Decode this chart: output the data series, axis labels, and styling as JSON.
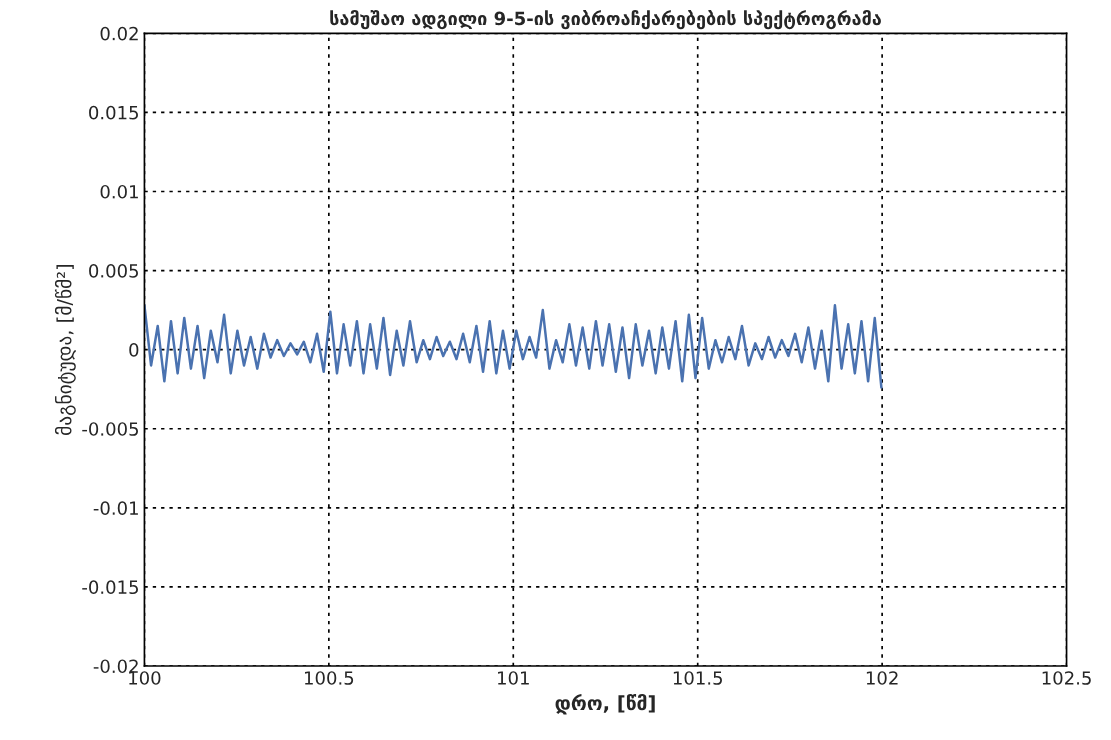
{
  "chart_data": {
    "type": "line",
    "title": "სამუშაო ადგილი 9-5-ის ვიბროაჩქარებების სპექტროგრამა",
    "xlabel": "დრო, [წმ]",
    "ylabel": "მაგნიტუდა, [მ/წმ²]",
    "series": [
      {
        "color": "#4a72b0",
        "x": [
          100,
          100.018,
          100.036,
          100.054,
          100.072,
          100.09,
          100.108,
          100.126,
          100.144,
          100.162,
          100.18,
          100.198,
          100.216,
          100.234,
          100.252,
          100.27,
          100.288,
          100.306,
          100.324,
          100.342,
          100.36,
          100.378,
          100.396,
          100.414,
          100.432,
          100.45,
          100.468,
          100.486,
          100.504,
          100.522,
          100.54,
          100.558,
          100.576,
          100.594,
          100.612,
          100.63,
          100.648,
          100.666,
          100.684,
          100.702,
          100.72,
          100.738,
          100.756,
          100.774,
          100.792,
          100.81,
          100.828,
          100.846,
          100.864,
          100.882,
          100.9,
          100.918,
          100.936,
          100.954,
          100.972,
          100.99,
          101.008,
          101.026,
          101.044,
          101.062,
          101.08,
          101.098,
          101.116,
          101.134,
          101.152,
          101.17,
          101.188,
          101.206,
          101.224,
          101.242,
          101.26,
          101.278,
          101.296,
          101.314,
          101.332,
          101.35,
          101.368,
          101.386,
          101.404,
          101.422,
          101.44,
          101.458,
          101.476,
          101.494,
          101.512,
          101.53,
          101.548,
          101.566,
          101.584,
          101.602,
          101.62,
          101.638,
          101.656,
          101.674,
          101.692,
          101.71,
          101.728,
          101.746,
          101.764,
          101.782,
          101.8,
          101.818,
          101.836,
          101.854,
          101.872,
          101.89,
          101.908,
          101.926,
          101.944,
          101.962,
          101.98,
          101.998
        ],
        "values": [
          0.0028,
          -0.001,
          0.0015,
          -0.002,
          0.0018,
          -0.0015,
          0.002,
          -0.0012,
          0.0015,
          -0.0018,
          0.0012,
          -0.0008,
          0.0022,
          -0.0015,
          0.0012,
          -0.001,
          0.0008,
          -0.0012,
          0.001,
          -0.0005,
          0.0006,
          -0.0004,
          0.0004,
          -0.0003,
          0.0005,
          -0.0008,
          0.001,
          -0.0014,
          0.0024,
          -0.0015,
          0.0016,
          -0.001,
          0.0018,
          -0.0015,
          0.0016,
          -0.0012,
          0.002,
          -0.0016,
          0.0012,
          -0.001,
          0.0018,
          -0.0008,
          0.0006,
          -0.0006,
          0.0008,
          -0.0004,
          0.0005,
          -0.0006,
          0.001,
          -0.0008,
          0.0015,
          -0.0014,
          0.0018,
          -0.0015,
          0.0012,
          -0.0012,
          0.0012,
          -0.0006,
          0.0008,
          -0.0005,
          0.0025,
          -0.0012,
          0.0006,
          -0.0008,
          0.0016,
          -0.001,
          0.0014,
          -0.0012,
          0.0018,
          -0.001,
          0.0016,
          -0.0014,
          0.0014,
          -0.0018,
          0.0016,
          -0.001,
          0.0012,
          -0.0015,
          0.0014,
          -0.0012,
          0.0018,
          -0.002,
          0.0022,
          -0.0018,
          0.002,
          -0.0012,
          0.0006,
          -0.0008,
          0.0008,
          -0.0006,
          0.0015,
          -0.001,
          0.0004,
          -0.0006,
          0.0008,
          -0.0005,
          0.0006,
          -0.0004,
          0.001,
          -0.0008,
          0.0014,
          -0.0012,
          0.0012,
          -0.002,
          0.0028,
          -0.0012,
          0.0016,
          -0.0015,
          0.0018,
          -0.002,
          0.002,
          -0.0024
        ]
      }
    ],
    "xlim": [
      100,
      102.5
    ],
    "xticks": [
      100,
      100.5,
      101,
      101.5,
      102,
      102.5
    ],
    "ylim": [
      -0.02,
      0.02
    ],
    "yticks": [
      {
        "value": -0.02,
        "label": "-0.02"
      },
      {
        "value": -0.015,
        "label": "-0.015"
      },
      {
        "value": -0.01,
        "label": "-0.01"
      },
      {
        "value": -0.005,
        "label": "-0.005"
      },
      0,
      0.005,
      0.01,
      0.015,
      0.02
    ],
    "grid": true,
    "line_style": "solid",
    "legend": false
  }
}
